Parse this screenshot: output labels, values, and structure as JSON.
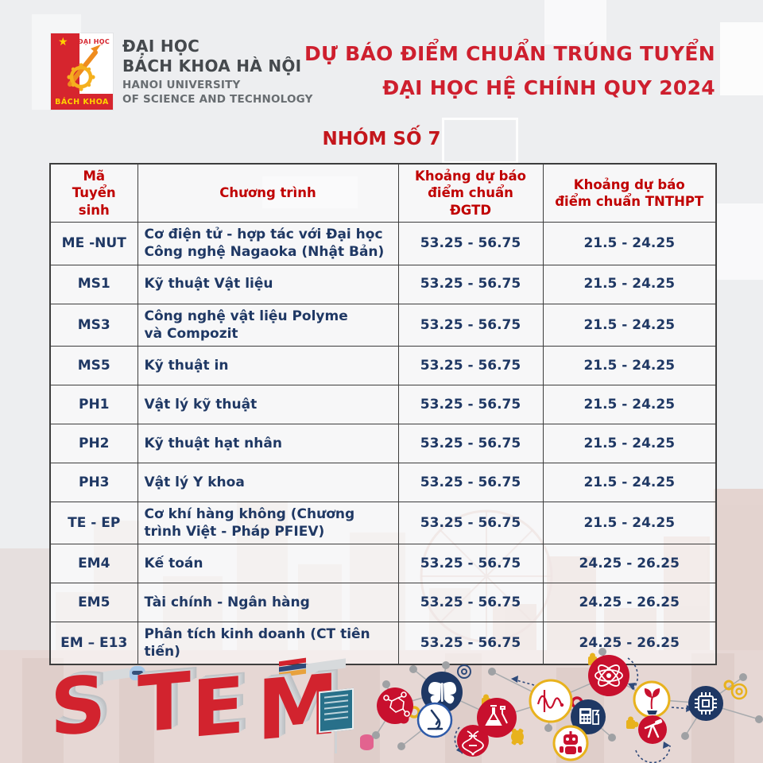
{
  "colors": {
    "accent_red": "#ce1f2e",
    "table_header_red": "#c00000",
    "table_body_navy": "#1f3864",
    "table_border": "#3d3d3d",
    "background": "#edeef0",
    "footer_strip": "#e6d7d4",
    "logo_red": "#d6252e",
    "logo_yellow": "#ffd200"
  },
  "logo": {
    "top_label": "ĐẠI HỌC",
    "bottom_label": "BÁCH KHOA",
    "star": "★"
  },
  "university": {
    "name_vi_line1": "ĐẠI HỌC",
    "name_vi_line2": "BÁCH KHOA HÀ NỘI",
    "name_en_line1": "HANOI UNIVERSITY",
    "name_en_line2": "OF SCIENCE AND TECHNOLOGY"
  },
  "title": {
    "line1": "DỰ BÁO ĐIỂM CHUẨN TRÚNG TUYỂN",
    "line2": "ĐẠI HỌC HỆ CHÍNH QUY 2024"
  },
  "group": {
    "label": "NHÓM SỐ 7"
  },
  "table": {
    "headers": [
      "Mã\nTuyển sinh",
      "Chương trình",
      "Khoảng dự báo\nđiểm chuẩn ĐGTD",
      "Khoảng dự báo\nđiểm chuẩn TNTHPT"
    ],
    "rows": [
      {
        "code": "ME -NUT",
        "program": "Cơ điện tử - hợp tác với Đại học Công nghệ Nagaoka (Nhật Bản)",
        "dgtd": "53.25 - 56.75",
        "tnthpt": "21.5 - 24.25"
      },
      {
        "code": "MS1",
        "program": "Kỹ thuật Vật liệu",
        "dgtd": "53.25 - 56.75",
        "tnthpt": "21.5 - 24.25"
      },
      {
        "code": "MS3",
        "program": "Công nghệ vật liệu Polyme\nvà Compozit",
        "dgtd": "53.25 - 56.75",
        "tnthpt": "21.5 - 24.25"
      },
      {
        "code": "MS5",
        "program": "Kỹ thuật in",
        "dgtd": "53.25 - 56.75",
        "tnthpt": "21.5 - 24.25"
      },
      {
        "code": "PH1",
        "program": "Vật lý kỹ thuật",
        "dgtd": "53.25 - 56.75",
        "tnthpt": "21.5 - 24.25"
      },
      {
        "code": "PH2",
        "program": "Kỹ thuật hạt nhân",
        "dgtd": "53.25 - 56.75",
        "tnthpt": "21.5 - 24.25"
      },
      {
        "code": "PH3",
        "program": "Vật lý Y khoa",
        "dgtd": "53.25 - 56.75",
        "tnthpt": "21.5 - 24.25"
      },
      {
        "code": "TE - EP",
        "program": "Cơ khí hàng không (Chương trình Việt - Pháp PFIEV)",
        "dgtd": "53.25 - 56.75",
        "tnthpt": "21.5 - 24.25"
      },
      {
        "code": "EM4",
        "program": "Kế toán",
        "dgtd": "53.25 - 56.75",
        "tnthpt": "24.25 - 26.25"
      },
      {
        "code": "EM5",
        "program": "Tài chính - Ngân hàng",
        "dgtd": "53.25 - 56.75",
        "tnthpt": "24.25 - 26.25"
      },
      {
        "code": "EM – E13",
        "program": "Phân tích kinh doanh (CT tiên tiến)",
        "dgtd": "53.25 - 56.75",
        "tnthpt": "24.25 - 26.25"
      }
    ]
  },
  "footer": {
    "stem_letters": [
      "S",
      "T",
      "E",
      "M"
    ]
  }
}
